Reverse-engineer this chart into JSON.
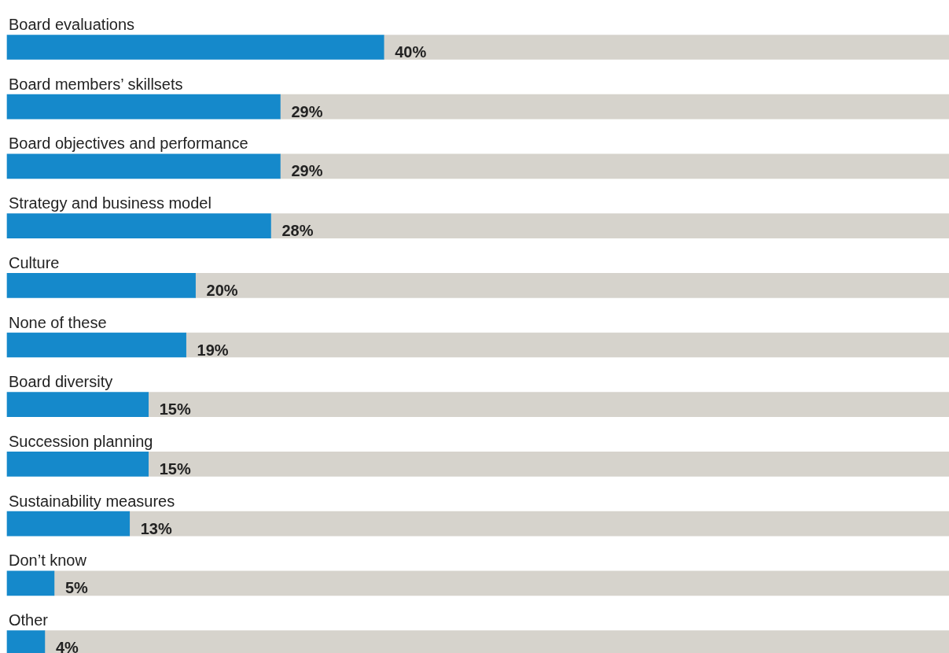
{
  "chart_data": {
    "type": "bar",
    "orientation": "horizontal",
    "stacked": true,
    "categories": [
      "Board evaluations",
      "Board members’ skillsets",
      "Board objectives and performance",
      "Strategy and business model",
      "Culture",
      "None of these",
      "Board diversity",
      "Succession planning",
      "Sustainability measures",
      "Don’t know",
      "Other"
    ],
    "series": [
      {
        "color": "#1589cb",
        "values": [
          40,
          29,
          29,
          28,
          20,
          19,
          15,
          15,
          13,
          5,
          4
        ],
        "value_labels": [
          "40%",
          "29%",
          "29%",
          "28%",
          "20%",
          "19%",
          "15%",
          "15%",
          "13%",
          "5%",
          "4%"
        ]
      },
      {
        "color": "#d6d3cc",
        "values": [
          60,
          71,
          71,
          72,
          80,
          81,
          85,
          85,
          87,
          95,
          96
        ]
      }
    ],
    "xlim": [
      0,
      100
    ],
    "tick_labels": "y",
    "legend": false
  }
}
